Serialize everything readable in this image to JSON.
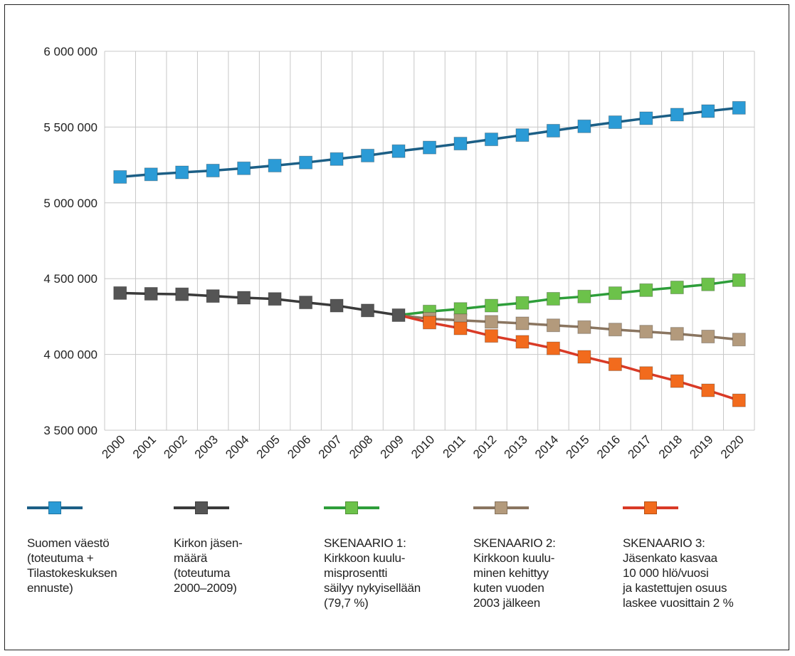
{
  "chart_data": {
    "type": "line",
    "title": "",
    "xlabel": "",
    "ylabel": "",
    "categories": [
      "2000",
      "2001",
      "2002",
      "2003",
      "2004",
      "2005",
      "2006",
      "2007",
      "2008",
      "2009",
      "2010",
      "2011",
      "2012",
      "2013",
      "2014",
      "2015",
      "2016",
      "2017",
      "2018",
      "2019",
      "2020"
    ],
    "ylim": [
      3500000,
      6000000
    ],
    "yticks": [
      3500000,
      4000000,
      4500000,
      5000000,
      5500000,
      6000000
    ],
    "ytick_labels": [
      "3 500 000",
      "4 000 000",
      "4 500 000",
      "5 000 000",
      "5 500 000",
      "6 000 000"
    ],
    "grid": true,
    "legend_position": "bottom",
    "series": [
      {
        "name": "Suomen väestö\n(toteutuma +\nTilastokeskuksen\nennuste)",
        "color": "#2b9bd6",
        "line_color": "#1c5f86",
        "x": [
          "2000",
          "2001",
          "2002",
          "2003",
          "2004",
          "2005",
          "2006",
          "2007",
          "2008",
          "2009",
          "2010",
          "2011",
          "2012",
          "2013",
          "2014",
          "2015",
          "2016",
          "2017",
          "2018",
          "2019",
          "2020"
        ],
        "values": [
          5171000,
          5188000,
          5201000,
          5213000,
          5228000,
          5246000,
          5266000,
          5289000,
          5312000,
          5341000,
          5365000,
          5391000,
          5419000,
          5447000,
          5476000,
          5505000,
          5532000,
          5558000,
          5582000,
          5605000,
          5627000
        ]
      },
      {
        "name": "Kirkon jäsen-\nmäärä\n(toteutuma\n2000–2009)",
        "color": "#555555",
        "line_color": "#3a3a3a",
        "x": [
          "2000",
          "2001",
          "2002",
          "2003",
          "2004",
          "2005",
          "2006",
          "2007",
          "2008",
          "2009"
        ],
        "values": [
          4405000,
          4400000,
          4397000,
          4385000,
          4374000,
          4366000,
          4343000,
          4322000,
          4290000,
          4259000
        ]
      },
      {
        "name": "SKENAARIO 1:\nKirkkoon kuulu-\nmisprosentti\nsäilyy nykyisellään\n(79,7 %)",
        "color": "#6cc24a",
        "line_color": "#2e9e3a",
        "x": [
          "2009",
          "2010",
          "2011",
          "2012",
          "2013",
          "2014",
          "2015",
          "2016",
          "2017",
          "2018",
          "2019",
          "2020"
        ],
        "values": [
          4259000,
          4283000,
          4300000,
          4322000,
          4340000,
          4367000,
          4382000,
          4404000,
          4424000,
          4442000,
          4462000,
          4490000
        ]
      },
      {
        "name": "SKENAARIO 2:\nKirkkoon kuulu-\nminen kehittyy\nkuten vuoden\n2003 jälkeen",
        "color": "#b39a7c",
        "line_color": "#8a7560",
        "x": [
          "2009",
          "2010",
          "2011",
          "2012",
          "2013",
          "2014",
          "2015",
          "2016",
          "2017",
          "2018",
          "2019",
          "2020"
        ],
        "values": [
          4259000,
          4235000,
          4225000,
          4215000,
          4205000,
          4192000,
          4180000,
          4164000,
          4150000,
          4136000,
          4118000,
          4098000
        ]
      },
      {
        "name": "SKENAARIO 3:\nJäsenkato kasvaa\n10 000 hlö/vuosi\nja kastettujen osuus\nlaskee vuosittain 2 %",
        "color": "#f26b1d",
        "line_color": "#d93a26",
        "x": [
          "2009",
          "2010",
          "2011",
          "2012",
          "2013",
          "2014",
          "2015",
          "2016",
          "2017",
          "2018",
          "2019",
          "2020"
        ],
        "values": [
          4259000,
          4210000,
          4172000,
          4122000,
          4083000,
          4040000,
          3984000,
          3935000,
          3877000,
          3824000,
          3763000,
          3697000
        ]
      }
    ]
  }
}
